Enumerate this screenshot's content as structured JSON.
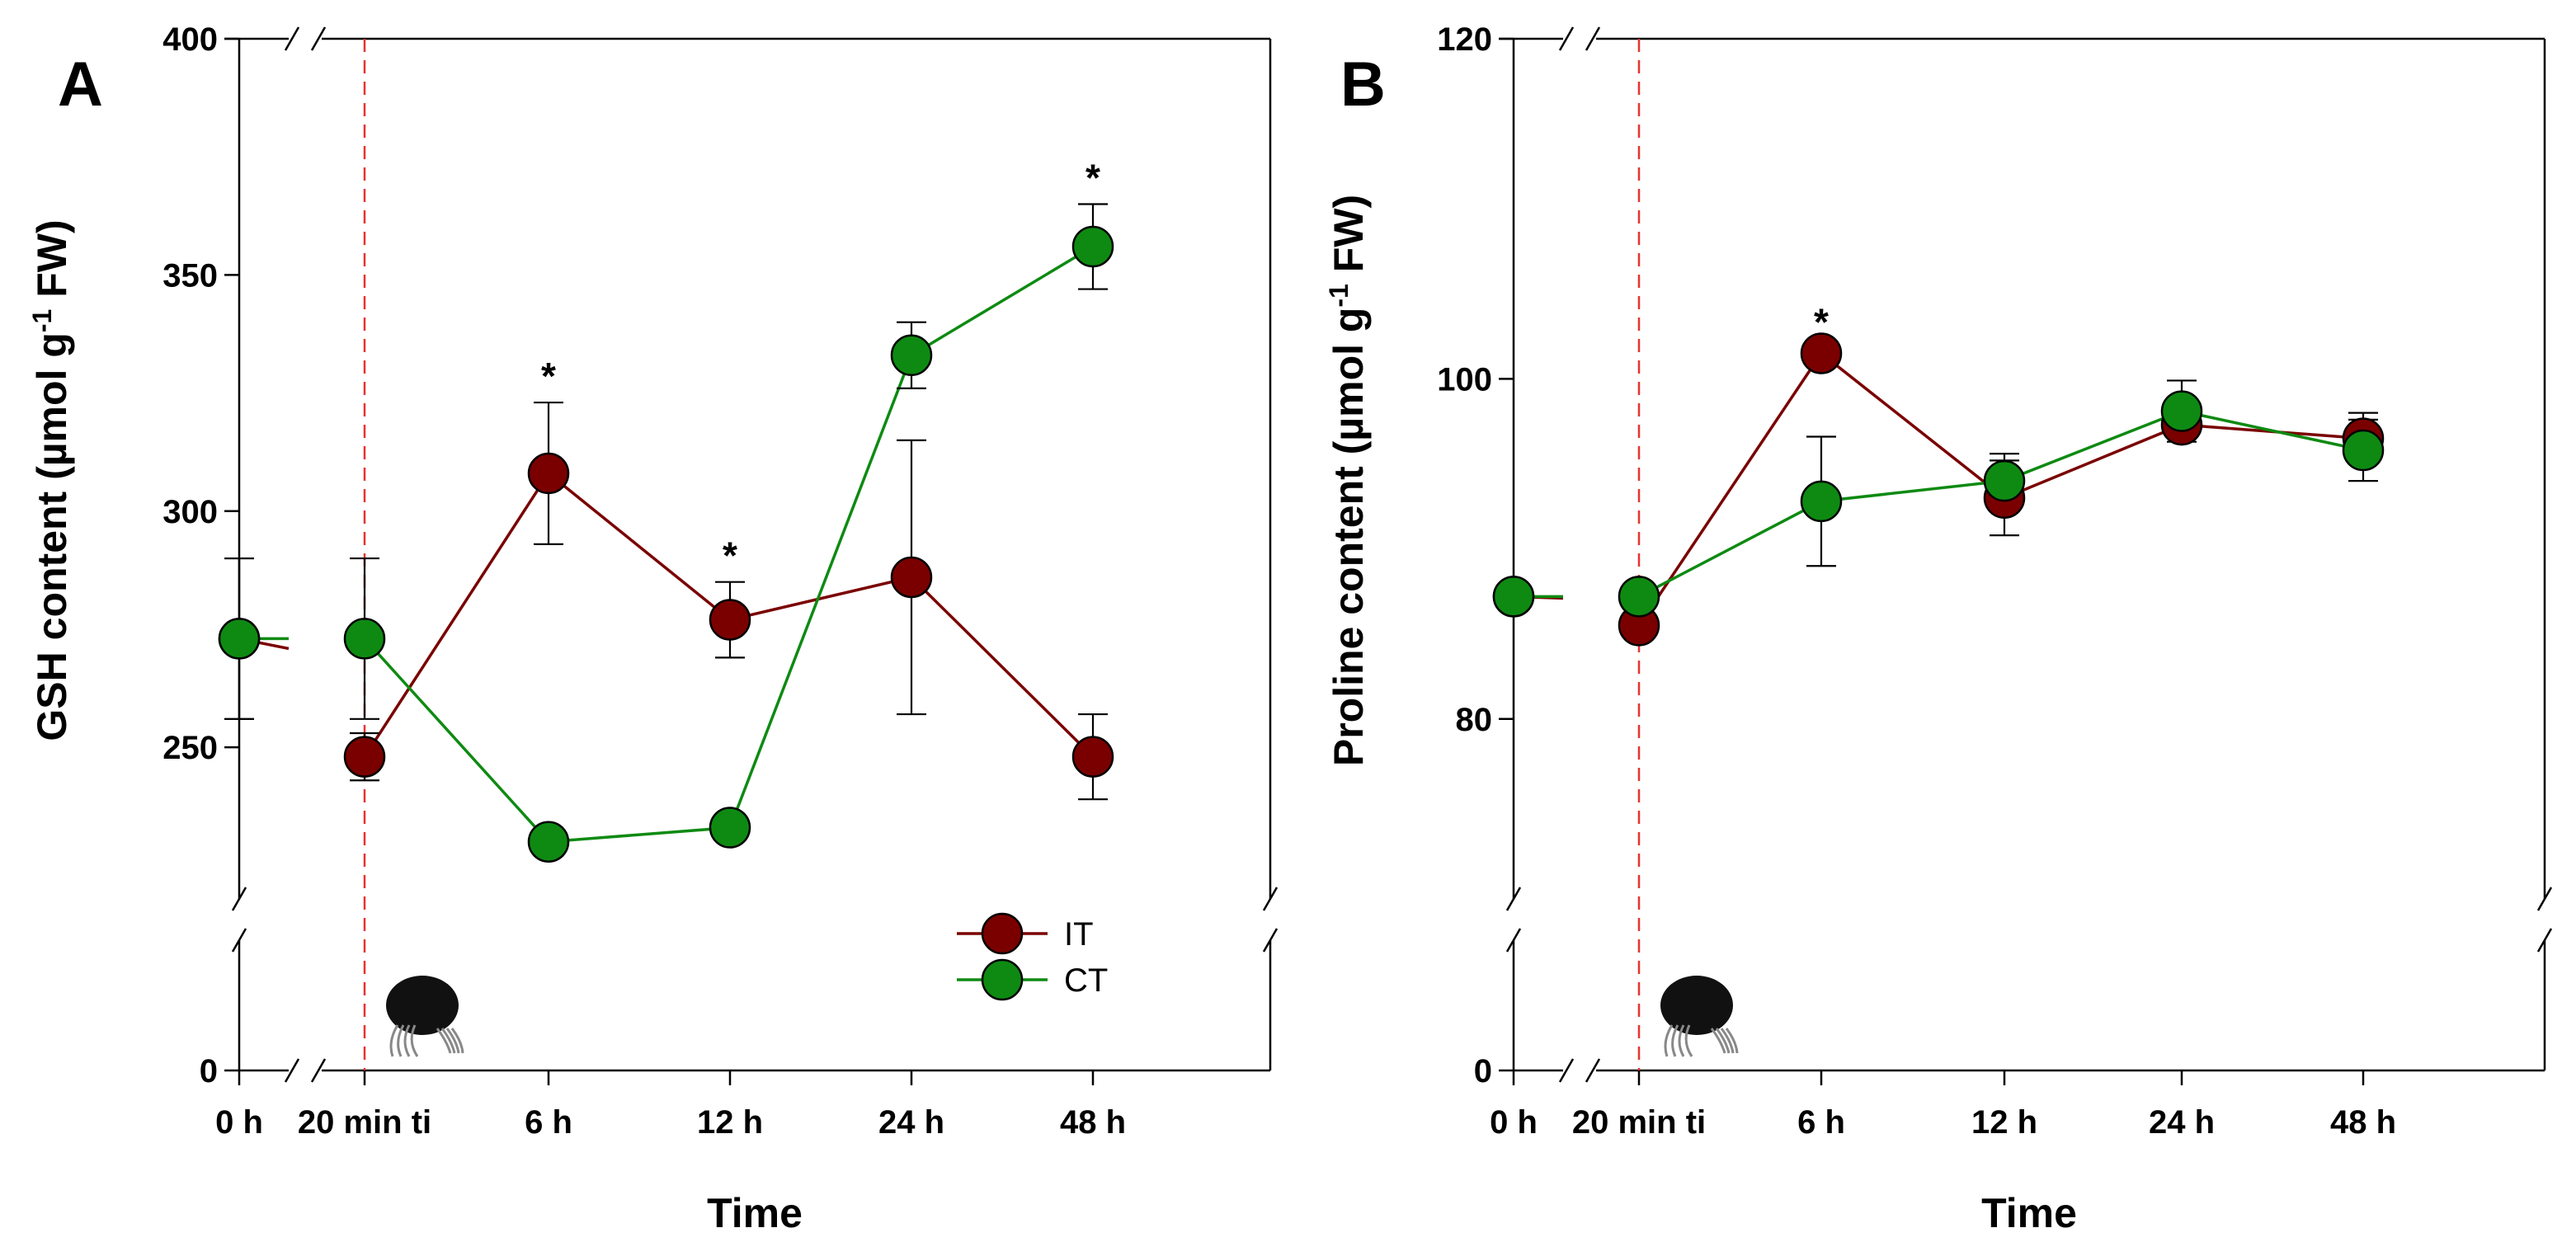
{
  "chart_data": [
    {
      "panel": "A",
      "type": "line",
      "ylabel": "GSH content (µmol g-1 FW)",
      "xlabel": "Time",
      "categories": [
        "0 h",
        "20 min ti",
        "6 h",
        "12 h",
        "24 h",
        "48 h"
      ],
      "ylim": [
        220,
        400
      ],
      "yticks": [
        250,
        300,
        350,
        400
      ],
      "y_break_lower_label": "0",
      "series": [
        {
          "name": "IT",
          "color": "#7a0000",
          "values": [
            273,
            248,
            308,
            277,
            286,
            248
          ],
          "errors": [
            17,
            5,
            15,
            8,
            29,
            9
          ]
        },
        {
          "name": "CT",
          "color": "#0e8a12",
          "values": [
            273,
            273,
            230,
            233,
            333,
            356
          ],
          "errors": [
            17,
            17,
            3,
            2,
            7,
            9
          ]
        }
      ],
      "significance": [
        {
          "category": "6 h",
          "label": "*"
        },
        {
          "category": "12 h",
          "label": "*"
        },
        {
          "category": "48 h",
          "label": "*"
        }
      ],
      "annotation": "dashed red vertical line at 20 min ti (infestation time) with mite icon",
      "legend": {
        "position": "bottom-right",
        "entries": [
          "IT",
          "CT"
        ]
      }
    },
    {
      "panel": "B",
      "type": "line",
      "ylabel": "Proline content (µmol g-1 FW)",
      "xlabel": "Time",
      "categories": [
        "0 h",
        "20 min ti",
        "6 h",
        "12 h",
        "24 h",
        "48 h"
      ],
      "ylim": [
        70,
        120
      ],
      "yticks": [
        80,
        100,
        120
      ],
      "y_break_lower_label": "0",
      "series": [
        {
          "name": "IT",
          "color": "#7a0000",
          "values": [
            87.2,
            85.5,
            101.5,
            93.0,
            97.3,
            96.5
          ],
          "errors": [
            0.3,
            0.3,
            0.3,
            2.2,
            0.8,
            1.5
          ]
        },
        {
          "name": "CT",
          "color": "#0e8a12",
          "values": [
            87.2,
            87.2,
            92.8,
            94.0,
            98.1,
            95.8
          ],
          "errors": [
            0.3,
            0.3,
            3.8,
            1.6,
            1.8,
            1.8
          ]
        }
      ],
      "significance": [
        {
          "category": "6 h",
          "label": "*"
        }
      ],
      "annotation": "dashed red vertical line at 20 min ti (infestation time) with mite icon"
    }
  ]
}
